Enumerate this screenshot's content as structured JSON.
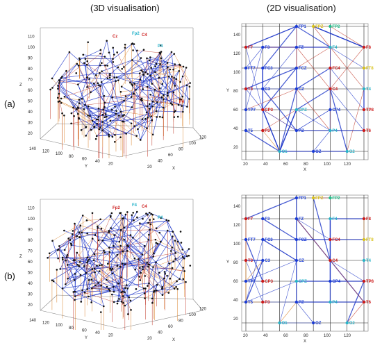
{
  "headings": {
    "view3d": "(3D visualisation)",
    "view2d": "(2D visualisation)"
  },
  "rows": [
    {
      "label": "(a)"
    },
    {
      "label": "(b)"
    }
  ],
  "plot3d": {
    "z_ticks": [
      "20",
      "30",
      "40",
      "50",
      "60",
      "70",
      "80",
      "90",
      "100",
      "110"
    ],
    "y_ticks": [
      "140",
      "120",
      "100",
      "80",
      "60",
      "40",
      "20"
    ],
    "x_ticks": [
      "20",
      "40",
      "60",
      "80",
      "100",
      "120"
    ],
    "z_label": "Z",
    "y_label": "Y",
    "x_label": "X",
    "labels_a": [
      "Cz",
      "Fp2",
      "C4",
      "P4",
      "F4"
    ],
    "labels_b": [
      "Fp2",
      "F4",
      "C4",
      "P4"
    ]
  },
  "plot2d": {
    "y_ticks": [
      "140",
      "120",
      "100",
      "80",
      "60",
      "40",
      "20"
    ],
    "x_ticks": [
      "20",
      "40",
      "60",
      "80",
      "100",
      "120"
    ],
    "x_label": "X",
    "y_label": "Y",
    "electrodes": [
      {
        "name": "FP1",
        "gx": 3,
        "gy": 0,
        "color": "#1a3bd6"
      },
      {
        "name": "FPZ",
        "gx": 4,
        "gy": 0,
        "color": "#d8c21a"
      },
      {
        "name": "FP2",
        "gx": 5,
        "gy": 0,
        "color": "#20c08a"
      },
      {
        "name": "F7",
        "gx": 0,
        "gy": 1,
        "color": "#cc1a1a"
      },
      {
        "name": "F3",
        "gx": 1,
        "gy": 1,
        "color": "#1a3bd6"
      },
      {
        "name": "FZ",
        "gx": 3,
        "gy": 1,
        "color": "#1a3bd6"
      },
      {
        "name": "F4",
        "gx": 5,
        "gy": 1,
        "color": "#28b4c8"
      },
      {
        "name": "F8",
        "gx": 7,
        "gy": 1,
        "color": "#cc1a1a"
      },
      {
        "name": "FT7",
        "gx": 0,
        "gy": 2,
        "color": "#1a3bd6"
      },
      {
        "name": "FC3",
        "gx": 1,
        "gy": 2,
        "color": "#1a3bd6"
      },
      {
        "name": "FCZ",
        "gx": 3,
        "gy": 2,
        "color": "#1a3bd6"
      },
      {
        "name": "FC4",
        "gx": 5,
        "gy": 2,
        "color": "#cc1a1a"
      },
      {
        "name": "FT8",
        "gx": 7,
        "gy": 2,
        "color": "#d8c21a"
      },
      {
        "name": "T3",
        "gx": 0,
        "gy": 3,
        "color": "#cc1a1a"
      },
      {
        "name": "C3",
        "gx": 1,
        "gy": 3,
        "color": "#1a3bd6"
      },
      {
        "name": "CZ",
        "gx": 3,
        "gy": 3,
        "color": "#1a3bd6"
      },
      {
        "name": "C4",
        "gx": 5,
        "gy": 3,
        "color": "#cc1a1a"
      },
      {
        "name": "T4",
        "gx": 7,
        "gy": 3,
        "color": "#28b4c8"
      },
      {
        "name": "TP7",
        "gx": 0,
        "gy": 4,
        "color": "#1a3bd6"
      },
      {
        "name": "CP3",
        "gx": 1,
        "gy": 4,
        "color": "#cc1a1a"
      },
      {
        "name": "CPZ",
        "gx": 3,
        "gy": 4,
        "color": "#28b4c8"
      },
      {
        "name": "CP4",
        "gx": 5,
        "gy": 4,
        "color": "#1a3bd6"
      },
      {
        "name": "TP8",
        "gx": 7,
        "gy": 4,
        "color": "#cc1a1a"
      },
      {
        "name": "T5",
        "gx": 0,
        "gy": 5,
        "color": "#1a3bd6"
      },
      {
        "name": "P3",
        "gx": 1,
        "gy": 5,
        "color": "#cc1a1a"
      },
      {
        "name": "PZ",
        "gx": 3,
        "gy": 5,
        "color": "#1a3bd6"
      },
      {
        "name": "P4",
        "gx": 5,
        "gy": 5,
        "color": "#28b4c8"
      },
      {
        "name": "T6",
        "gx": 7,
        "gy": 5,
        "color": "#cc1a1a"
      },
      {
        "name": "O1",
        "gx": 2,
        "gy": 6,
        "color": "#28b4c8"
      },
      {
        "name": "OZ",
        "gx": 4,
        "gy": 6,
        "color": "#1a3bd6"
      },
      {
        "name": "O2",
        "gx": 6,
        "gy": 6,
        "color": "#28b4c8"
      }
    ]
  },
  "colors": {
    "edge_blue": "#1c34c8",
    "edge_red": "#c0392b",
    "edge_orange": "#d9822b",
    "node": "#111111"
  }
}
